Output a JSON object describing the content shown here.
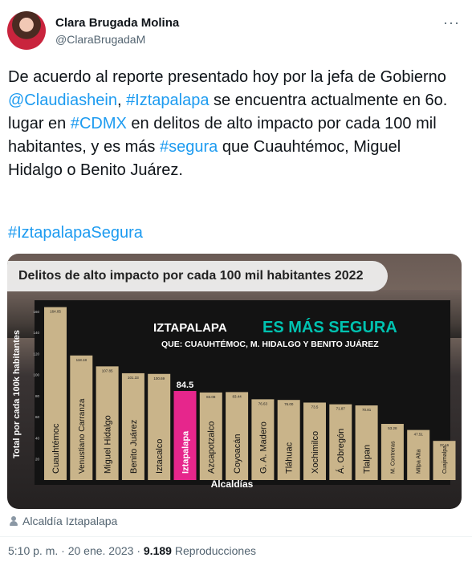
{
  "author": {
    "name": "Clara Brugada Molina",
    "handle": "@ClaraBrugadaM",
    "more_icon": "more-horizontal-icon"
  },
  "tweet": {
    "p1": "De acuerdo al reporte presentado hoy por la jefa de Gobierno ",
    "mention": "@Claudiashein",
    "p2": ", ",
    "hashtag1": "#Iztapalapa",
    "p3": " se encuentra actualmente en 6o. lugar en ",
    "hashtag2": "#CDMX",
    "p4": " en delitos de alto impacto por cada 100 mil habitantes, y es más ",
    "hashtag3": "#segura",
    "p5": " que Cuauhtémoc, Miguel Hidalgo o Benito Juárez.",
    "hashtag_line": "#IztapalapaSegura"
  },
  "chart_data": {
    "type": "bar",
    "title": "Delitos de alto impacto por cada 100 mil habitantes 2022",
    "headline": "IZTAPALAPA",
    "headline2": "ES MÁS SEGURA",
    "subheadline": "QUE: CUAUHTÉMOC, M. HIDALGO Y BENITO JUÁREZ",
    "xlabel": "Alcaldías",
    "ylabel": "Total por cada 100k habitantes",
    "ylim": [
      0,
      166
    ],
    "yticks": [
      20,
      40,
      60,
      80,
      100,
      120,
      140,
      160
    ],
    "highlight": "Iztapalapa",
    "categories": [
      "Cuauhtémoc",
      "Venustiano Carranza",
      "Miguel Hidalgo",
      "Benito Juárez",
      "Iztacalco",
      "Iztapalapa",
      "Azcapotzalco",
      "Coyoacán",
      "G. A. Madero",
      "Tláhuac",
      "Xochimilco",
      "Á. Obregón",
      "Tlalpan",
      "M. Contreras",
      "Milpa Alta",
      "Cuajimalpa"
    ],
    "value_labels": [
      "164.05",
      "118.18",
      "107.85",
      "101.33",
      "100.69",
      "84.5",
      "83.08",
      "83.44",
      "76.63",
      "76.00",
      "73.5",
      "71.87",
      "70.81",
      "53.28",
      "47.51",
      "37.16"
    ],
    "values": [
      164.05,
      118.18,
      107.85,
      101.33,
      100.69,
      84.5,
      83.08,
      83.44,
      76.63,
      76.0,
      73.5,
      71.87,
      70.81,
      53.28,
      47.51,
      37.16
    ],
    "bar_color": "#c9b48a",
    "highlight_color": "#e6268c",
    "accent_color": "#00c2b0"
  },
  "source": {
    "icon": "person-icon",
    "label": "Alcaldía Iztapalapa"
  },
  "meta": {
    "time": "5:10 p. m. · 20 ene. 2023 · ",
    "views": "9.189",
    "views_label": " Reproducciones"
  }
}
